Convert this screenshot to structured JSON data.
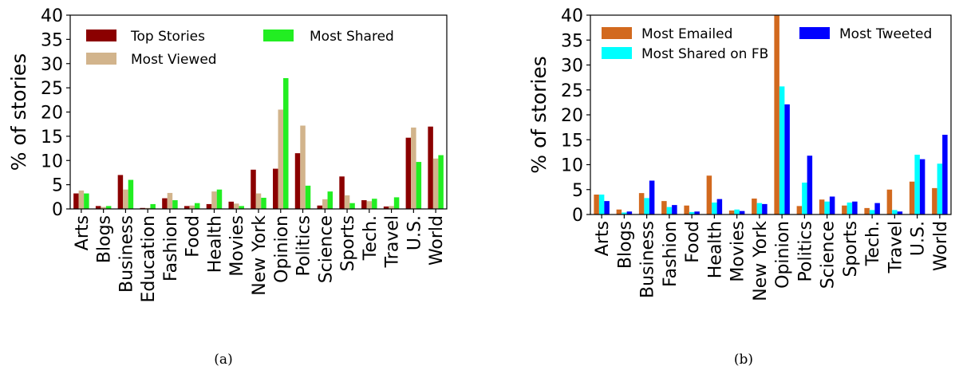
{
  "chart_data": [
    {
      "type": "bar",
      "caption": "(a)",
      "ylabel": "% of stories",
      "ylim": [
        0,
        40
      ],
      "yticks": [
        0,
        5,
        10,
        15,
        20,
        25,
        30,
        35,
        40
      ],
      "legend_position": "top",
      "categories": [
        "Arts",
        "Blogs",
        "Business",
        "Education",
        "Fashion",
        "Food",
        "Health",
        "Movies",
        "New York",
        "Opinion",
        "Politics",
        "Science",
        "Sports",
        "Tech.",
        "Travel",
        "U.S.",
        "World"
      ],
      "series": [
        {
          "name": "Top Stories",
          "color": "#8b0000",
          "values": [
            3.2,
            0.6,
            7.0,
            0.2,
            2.2,
            0.6,
            1.0,
            1.5,
            8.1,
            8.3,
            11.5,
            0.7,
            6.7,
            1.8,
            0.5,
            14.7,
            17.0
          ]
        },
        {
          "name": "Most Viewed",
          "color": "#d2b48c",
          "values": [
            3.8,
            0.4,
            4.0,
            0.2,
            3.3,
            0.7,
            3.6,
            1.1,
            3.2,
            20.5,
            17.2,
            2.0,
            2.8,
            1.6,
            0.6,
            16.8,
            10.4
          ]
        },
        {
          "name": "Most Shared",
          "color": "#22ee22",
          "values": [
            3.2,
            0.6,
            6.0,
            1.0,
            1.8,
            1.2,
            4.0,
            0.6,
            2.3,
            27.0,
            4.8,
            3.6,
            1.2,
            2.1,
            2.4,
            9.7,
            11.1
          ]
        }
      ]
    },
    {
      "type": "bar",
      "caption": "(b)",
      "ylabel": "% of stories",
      "ylim": [
        0,
        40
      ],
      "yticks": [
        0,
        5,
        10,
        15,
        20,
        25,
        30,
        35,
        40
      ],
      "legend_position": "top",
      "categories": [
        "Arts",
        "Blogs",
        "Business",
        "Fashion",
        "Food",
        "Health",
        "Movies",
        "New York",
        "Opinion",
        "Politics",
        "Science",
        "Sports",
        "Tech.",
        "Travel",
        "U.S.",
        "World"
      ],
      "series": [
        {
          "name": "Most Emailed",
          "color": "#d2691e",
          "values": [
            4.0,
            1.0,
            4.3,
            2.7,
            1.8,
            7.8,
            0.8,
            3.2,
            40.0,
            1.7,
            3.0,
            1.8,
            1.3,
            5.0,
            6.6,
            5.3
          ]
        },
        {
          "name": "Most Shared on FB",
          "color": "#00ffff",
          "values": [
            4.0,
            0.4,
            3.3,
            1.5,
            0.5,
            2.4,
            1.0,
            2.3,
            25.7,
            6.4,
            2.6,
            2.4,
            0.9,
            0.9,
            12.0,
            10.2
          ]
        },
        {
          "name": "Most Tweeted",
          "color": "#0000ff",
          "values": [
            2.7,
            0.6,
            6.8,
            1.9,
            0.6,
            3.1,
            0.7,
            2.1,
            22.1,
            11.8,
            3.6,
            2.6,
            2.3,
            0.6,
            11.1,
            16.0
          ]
        }
      ]
    }
  ]
}
